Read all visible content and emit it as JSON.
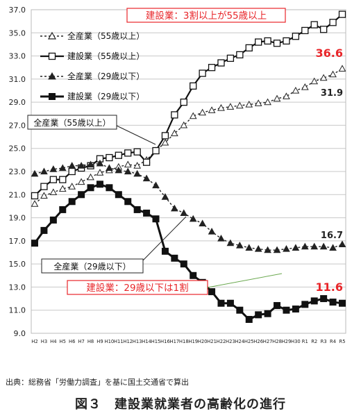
{
  "chart_data": {
    "type": "line",
    "x": [
      "H2",
      "H3",
      "H4",
      "H5",
      "H6",
      "H7",
      "H8",
      "H9",
      "H10",
      "H11",
      "H12",
      "H13",
      "H14",
      "H15",
      "H16",
      "H17",
      "H18",
      "H19",
      "H20",
      "H21",
      "H22",
      "H23",
      "H24",
      "H25",
      "H26",
      "H27",
      "H28",
      "H29",
      "H30",
      "R1",
      "R2",
      "R3",
      "R4",
      "R5"
    ],
    "ylim": [
      9.0,
      37.0
    ],
    "yticks": [
      "9.0",
      "11.0",
      "13.0",
      "15.0",
      "17.0",
      "19.0",
      "21.0",
      "23.0",
      "25.0",
      "27.0",
      "29.0",
      "31.0",
      "33.0",
      "35.0",
      "37.0"
    ],
    "grid": true,
    "legend_position": "top-left",
    "series": [
      {
        "name": "全産業（55歳以上）",
        "marker": "open-triangle",
        "dashed": true,
        "color": "#222222",
        "values": [
          20.2,
          20.9,
          21.2,
          21.5,
          21.7,
          22.1,
          22.5,
          22.9,
          23.1,
          23.4,
          23.6,
          23.5,
          24.0,
          24.8,
          25.5,
          26.3,
          27.0,
          27.8,
          28.1,
          28.3,
          28.5,
          28.6,
          28.7,
          28.8,
          28.9,
          29.0,
          29.3,
          29.5,
          30.0,
          30.3,
          30.8,
          31.1,
          31.4,
          31.9
        ]
      },
      {
        "name": "建設業（55歳以上）",
        "marker": "open-square",
        "dashed": false,
        "color": "#111111",
        "values": [
          20.9,
          21.7,
          22.3,
          22.3,
          23.0,
          23.3,
          23.5,
          24.1,
          24.2,
          24.4,
          24.6,
          24.7,
          23.8,
          24.8,
          26.1,
          27.9,
          29.0,
          30.4,
          31.5,
          32.0,
          32.4,
          32.8,
          33.1,
          33.7,
          34.2,
          34.3,
          34.1,
          34.3,
          34.7,
          35.2,
          35.7,
          35.3,
          35.9,
          36.6
        ]
      },
      {
        "name": "全産業（29歳以下）",
        "marker": "filled-triangle",
        "dashed": true,
        "color": "#222222",
        "values": [
          22.8,
          23.0,
          23.2,
          23.3,
          23.5,
          23.5,
          23.6,
          23.7,
          23.3,
          23.1,
          23.0,
          22.8,
          22.4,
          21.8,
          20.8,
          19.8,
          19.4,
          18.9,
          18.5,
          17.8,
          17.2,
          16.8,
          16.6,
          16.4,
          16.3,
          16.2,
          16.2,
          16.3,
          16.4,
          16.5,
          16.5,
          16.5,
          16.4,
          16.7
        ]
      },
      {
        "name": "建設業（29歳以下）",
        "marker": "filled-square",
        "dashed": false,
        "color": "#111111",
        "values": [
          16.8,
          17.9,
          18.8,
          19.7,
          20.4,
          21.0,
          21.6,
          21.9,
          21.6,
          21.0,
          20.4,
          19.7,
          19.4,
          18.9,
          16.1,
          15.5,
          15.0,
          14.0,
          13.4,
          12.6,
          11.6,
          11.6,
          11.0,
          10.2,
          10.6,
          10.7,
          11.4,
          11.0,
          11.1,
          11.5,
          11.8,
          12.0,
          11.7,
          11.6
        ]
      }
    ],
    "annotations": {
      "top_note": "建設業：3割以上が55歳以上",
      "bottom_note": "建設業：29歳以下は1割",
      "callout_all55": "全産業（55歳以上）",
      "callout_all29": "全産業（29歳以下）",
      "end_c55": "36.6",
      "end_a55": "31.9",
      "end_a29": "16.7",
      "end_c29": "11.6"
    },
    "highlight_color": "#e8262a"
  },
  "source_note": "出典：総務省「労働力調査」を基に国土交通省で算出",
  "figure_caption": "図３　建設業就業者の高齢化の進行"
}
